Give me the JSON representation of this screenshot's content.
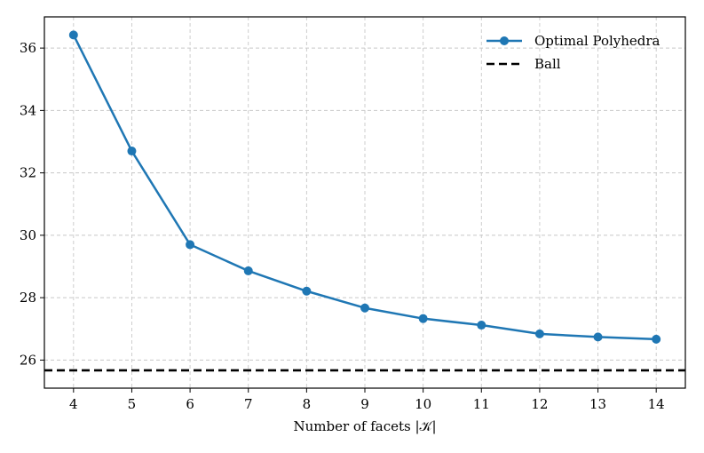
{
  "chart_data": {
    "type": "line",
    "title": "",
    "xlabel": "Number of facets |𝒦|",
    "ylabel": "",
    "xlim": [
      3.5,
      14.5
    ],
    "ylim": [
      25.1,
      37.0
    ],
    "xticks": [
      4,
      5,
      6,
      7,
      8,
      9,
      10,
      11,
      12,
      13,
      14
    ],
    "yticks": [
      26,
      28,
      30,
      32,
      34,
      36
    ],
    "grid": true,
    "legend_position": "top-right",
    "series": [
      {
        "name": "Optimal Polyhedra",
        "style": "solid-with-markers",
        "color": "#1f77b4",
        "x": [
          4,
          5,
          6,
          7,
          8,
          9,
          10,
          11,
          12,
          13,
          14
        ],
        "y": [
          36.42,
          32.7,
          29.7,
          28.86,
          28.21,
          27.67,
          27.33,
          27.12,
          26.84,
          26.74,
          26.67
        ]
      },
      {
        "name": "Ball",
        "style": "dashed",
        "color": "#000000",
        "constant": 25.67
      }
    ]
  }
}
